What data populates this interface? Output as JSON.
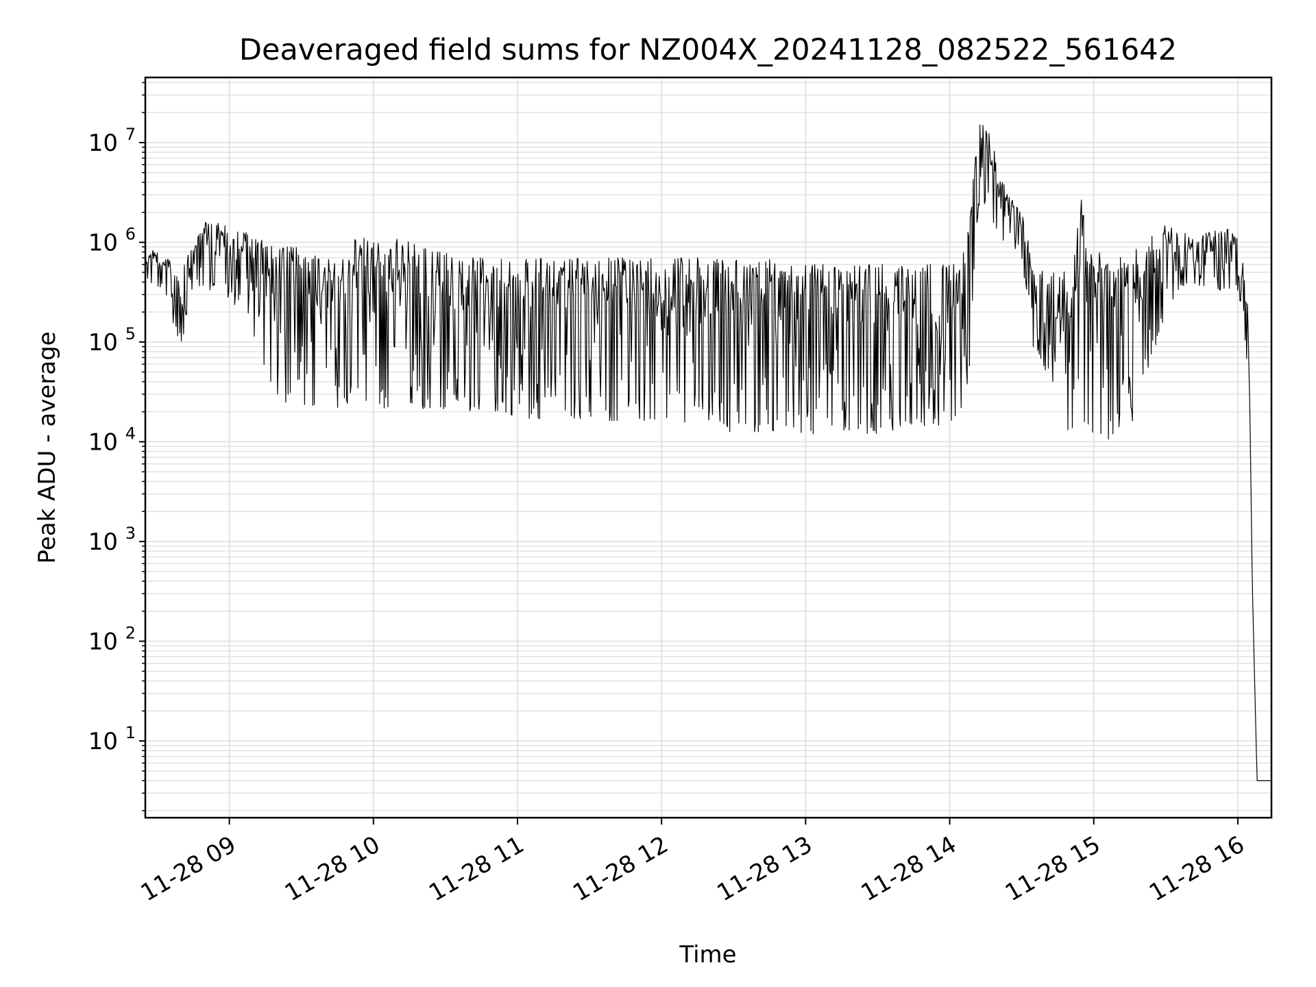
{
  "chart_data": {
    "type": "line",
    "title": "Deaveraged field sums for NZ004X_20241128_082522_561642",
    "xlabel": "Time",
    "ylabel": "Peak ADU - average",
    "xlim": [
      "2024-11-28 08:25",
      "2024-11-28 16:14"
    ],
    "ylim": [
      1.7,
      45000000
    ],
    "yscale": "log",
    "grid": true,
    "legend": "none",
    "line_color": "#000000",
    "grid_color": "#e3e3e3",
    "x_ticks": [
      {
        "value": "2024-11-28 09:00",
        "label": "11-28 09"
      },
      {
        "value": "2024-11-28 10:00",
        "label": "11-28 10"
      },
      {
        "value": "2024-11-28 11:00",
        "label": "11-28 11"
      },
      {
        "value": "2024-11-28 12:00",
        "label": "11-28 12"
      },
      {
        "value": "2024-11-28 13:00",
        "label": "11-28 13"
      },
      {
        "value": "2024-11-28 14:00",
        "label": "11-28 14"
      },
      {
        "value": "2024-11-28 15:00",
        "label": "11-28 15"
      },
      {
        "value": "2024-11-28 16:00",
        "label": "11-28 16"
      }
    ],
    "y_ticks": [
      {
        "value": 10,
        "base": "10",
        "exp": "1"
      },
      {
        "value": 100,
        "base": "10",
        "exp": "2"
      },
      {
        "value": 1000,
        "base": "10",
        "exp": "3"
      },
      {
        "value": 10000,
        "base": "10",
        "exp": "4"
      },
      {
        "value": 100000,
        "base": "10",
        "exp": "5"
      },
      {
        "value": 1000000,
        "base": "10",
        "exp": "6"
      },
      {
        "value": 10000000,
        "base": "10",
        "exp": "7"
      }
    ],
    "series": [
      {
        "x": [
          "2024-11-28 08:25",
          "2024-11-28 08:30",
          "2024-11-28 08:35",
          "2024-11-28 08:40",
          "2024-11-28 08:45",
          "2024-11-28 08:50",
          "2024-11-28 08:55",
          "2024-11-28 09:00",
          "2024-11-28 09:05",
          "2024-11-28 09:10",
          "2024-11-28 09:15",
          "2024-11-28 09:20",
          "2024-11-28 09:25",
          "2024-11-28 09:30",
          "2024-11-28 09:35",
          "2024-11-28 09:40",
          "2024-11-28 09:45",
          "2024-11-28 09:50",
          "2024-11-28 09:55",
          "2024-11-28 10:00",
          "2024-11-28 10:05",
          "2024-11-28 10:10",
          "2024-11-28 10:15",
          "2024-11-28 10:20",
          "2024-11-28 10:25",
          "2024-11-28 10:30",
          "2024-11-28 10:35",
          "2024-11-28 10:40",
          "2024-11-28 10:45",
          "2024-11-28 10:50",
          "2024-11-28 10:55",
          "2024-11-28 11:00",
          "2024-11-28 11:05",
          "2024-11-28 11:10",
          "2024-11-28 11:15",
          "2024-11-28 11:20",
          "2024-11-28 11:25",
          "2024-11-28 11:30",
          "2024-11-28 11:35",
          "2024-11-28 11:40",
          "2024-11-28 11:45",
          "2024-11-28 11:50",
          "2024-11-28 11:55",
          "2024-11-28 12:00",
          "2024-11-28 12:05",
          "2024-11-28 12:10",
          "2024-11-28 12:15",
          "2024-11-28 12:20",
          "2024-11-28 12:25",
          "2024-11-28 12:30",
          "2024-11-28 12:35",
          "2024-11-28 12:40",
          "2024-11-28 12:45",
          "2024-11-28 12:50",
          "2024-11-28 12:55",
          "2024-11-28 13:00",
          "2024-11-28 13:05",
          "2024-11-28 13:10",
          "2024-11-28 13:15",
          "2024-11-28 13:20",
          "2024-11-28 13:25",
          "2024-11-28 13:30",
          "2024-11-28 13:35",
          "2024-11-28 13:40",
          "2024-11-28 13:45",
          "2024-11-28 13:50",
          "2024-11-28 13:55",
          "2024-11-28 14:00",
          "2024-11-28 14:05",
          "2024-11-28 14:08",
          "2024-11-28 14:10",
          "2024-11-28 14:12",
          "2024-11-28 14:15",
          "2024-11-28 14:18",
          "2024-11-28 14:20",
          "2024-11-28 14:25",
          "2024-11-28 14:30",
          "2024-11-28 14:35",
          "2024-11-28 14:40",
          "2024-11-28 14:45",
          "2024-11-28 14:50",
          "2024-11-28 14:55",
          "2024-11-28 15:00",
          "2024-11-28 15:05",
          "2024-11-28 15:10",
          "2024-11-28 15:15",
          "2024-11-28 15:20",
          "2024-11-28 15:25",
          "2024-11-28 15:30",
          "2024-11-28 15:35",
          "2024-11-28 15:40",
          "2024-11-28 15:45",
          "2024-11-28 15:50",
          "2024-11-28 15:55",
          "2024-11-28 16:00",
          "2024-11-28 16:02",
          "2024-11-28 16:04",
          "2024-11-28 16:05",
          "2024-11-28 16:06",
          "2024-11-28 16:08",
          "2024-11-28 16:10",
          "2024-11-28 16:14"
        ],
        "lower": [
          450000,
          300000,
          200000,
          90000,
          350000,
          350000,
          280000,
          250000,
          220000,
          120000,
          50000,
          30000,
          22000,
          20000,
          20000,
          20000,
          21000,
          22000,
          20000,
          21000,
          20000,
          20000,
          22000,
          21000,
          22000,
          20000,
          20000,
          20000,
          20000,
          20000,
          19000,
          18000,
          17000,
          17000,
          17000,
          17000,
          17000,
          17000,
          16000,
          16000,
          15000,
          15000,
          15000,
          15000,
          15000,
          14000,
          13000,
          13000,
          13000,
          12000,
          12000,
          12000,
          13000,
          12000,
          12000,
          12000,
          12000,
          13000,
          13000,
          13000,
          12000,
          12000,
          13000,
          13000,
          14000,
          14000,
          14000,
          15000,
          20000,
          40000,
          500000,
          2000000,
          2000000,
          1500000,
          1000000,
          1000000,
          700000,
          80000,
          50000,
          20000,
          12000,
          15000,
          12000,
          10000,
          12000,
          14000,
          25000,
          80000,
          200000,
          300000,
          350000,
          350000,
          300000,
          350000,
          300000,
          200000,
          50000,
          20000,
          400,
          4,
          4,
          4
        ],
        "upper": [
          900000,
          800000,
          700000,
          500000,
          1000000,
          1600000,
          1600000,
          1400000,
          1300000,
          1200000,
          1000000,
          900000,
          900000,
          900000,
          800000,
          700000,
          600000,
          1200000,
          1100000,
          1100000,
          1100000,
          1100000,
          1000000,
          900000,
          800000,
          800000,
          700000,
          700000,
          700000,
          700000,
          700000,
          700000,
          700000,
          700000,
          700000,
          700000,
          700000,
          700000,
          700000,
          700000,
          700000,
          700000,
          700000,
          700000,
          700000,
          700000,
          700000,
          700000,
          700000,
          700000,
          700000,
          700000,
          700000,
          600000,
          600000,
          600000,
          600000,
          600000,
          600000,
          600000,
          600000,
          600000,
          600000,
          600000,
          600000,
          600000,
          600000,
          600000,
          600000,
          2000000,
          15000000,
          22000000,
          15000000,
          10000000,
          5000000,
          3000000,
          2000000,
          600000,
          500000,
          500000,
          600000,
          3000000,
          900000,
          700000,
          700000,
          800000,
          900000,
          1200000,
          1500000,
          1300000,
          1200000,
          1200000,
          1300000,
          1400000,
          1200000,
          700000,
          300000,
          25000,
          400,
          4,
          4,
          4
        ],
        "spike_count": 1500
      }
    ]
  }
}
